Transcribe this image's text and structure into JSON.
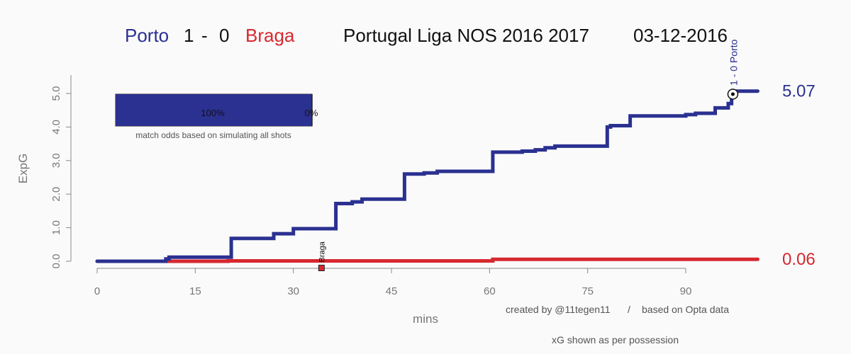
{
  "header": {
    "home_team": "Porto",
    "home_score": "1",
    "separator": "-",
    "away_score": "0",
    "away_team": "Braga",
    "competition": "Portugal Liga NOS 2016 2017",
    "date": "03-12-2016"
  },
  "colors": {
    "home": "#2b3190",
    "away": "#d7282f",
    "axis": "#8a8a8a",
    "background": "#fafafa"
  },
  "odds_box": {
    "home_pct": "100%",
    "away_pct": "0%",
    "home_value": 1.0,
    "caption": "match odds based on simulating all shots"
  },
  "credits": {
    "created_by": "created by @11tegen11",
    "slash": "/",
    "source": "based on Opta data",
    "note": "xG shown as per possession"
  },
  "chart_data": {
    "type": "line",
    "title": "",
    "xlabel": "mins",
    "ylabel": "ExpG",
    "xlim": [
      0,
      101
    ],
    "ylim": [
      0,
      5.3
    ],
    "x_ticks": [
      0,
      15,
      30,
      45,
      60,
      75,
      90
    ],
    "x_tick_labels": [
      "0",
      "15",
      "30",
      "45",
      "60",
      "75",
      "90"
    ],
    "y_ticks": [
      0,
      1,
      2,
      3,
      4,
      5
    ],
    "y_tick_labels": [
      "0.0",
      "1.0",
      "2.0",
      "3.0",
      "4.0",
      "5.0"
    ],
    "grid": false,
    "series": [
      {
        "name": "Porto",
        "final_label": "5.07",
        "color": "#2b3190",
        "step_points": [
          [
            0,
            0
          ],
          [
            10.5,
            0
          ],
          [
            10.5,
            0.07
          ],
          [
            11,
            0.07
          ],
          [
            11,
            0.12
          ],
          [
            20.5,
            0.12
          ],
          [
            20.5,
            0.68
          ],
          [
            27,
            0.68
          ],
          [
            27,
            0.82
          ],
          [
            30,
            0.82
          ],
          [
            30,
            0.97
          ],
          [
            36.5,
            0.97
          ],
          [
            36.5,
            1.72
          ],
          [
            39,
            1.72
          ],
          [
            39,
            1.77
          ],
          [
            40.5,
            1.77
          ],
          [
            40.5,
            1.85
          ],
          [
            47,
            1.85
          ],
          [
            47,
            2.6
          ],
          [
            50,
            2.6
          ],
          [
            50,
            2.63
          ],
          [
            52,
            2.63
          ],
          [
            52,
            2.68
          ],
          [
            60.5,
            2.68
          ],
          [
            60.5,
            3.25
          ],
          [
            65,
            3.25
          ],
          [
            65,
            3.28
          ],
          [
            67,
            3.28
          ],
          [
            67,
            3.32
          ],
          [
            68.5,
            3.32
          ],
          [
            68.5,
            3.38
          ],
          [
            70,
            3.38
          ],
          [
            70,
            3.43
          ],
          [
            78,
            3.43
          ],
          [
            78,
            4.0
          ],
          [
            78.5,
            4.0
          ],
          [
            78.5,
            4.04
          ],
          [
            81.5,
            4.04
          ],
          [
            81.5,
            4.33
          ],
          [
            90,
            4.33
          ],
          [
            90,
            4.37
          ],
          [
            91.5,
            4.37
          ],
          [
            91.5,
            4.41
          ],
          [
            94.5,
            4.41
          ],
          [
            94.5,
            4.57
          ],
          [
            96.5,
            4.57
          ],
          [
            96.5,
            4.7
          ],
          [
            97,
            4.7
          ],
          [
            97,
            4.98
          ],
          [
            97.5,
            4.98
          ],
          [
            97.5,
            5.07
          ],
          [
            101,
            5.07
          ]
        ]
      },
      {
        "name": "Braga",
        "final_label": "0.06",
        "color": "#d7282f",
        "step_points": [
          [
            0,
            0
          ],
          [
            20,
            0
          ],
          [
            20,
            0.01
          ],
          [
            60.5,
            0.01
          ],
          [
            60.5,
            0.06
          ],
          [
            101,
            0.06
          ]
        ]
      }
    ],
    "goal_markers": [
      {
        "minute": 97.2,
        "xg": 4.98,
        "label": "1 - 0 Porto",
        "team": "Porto"
      }
    ],
    "event_markers": [
      {
        "minute": 34.3,
        "xg": -0.2,
        "label": "Braga",
        "team": "Braga"
      }
    ]
  }
}
